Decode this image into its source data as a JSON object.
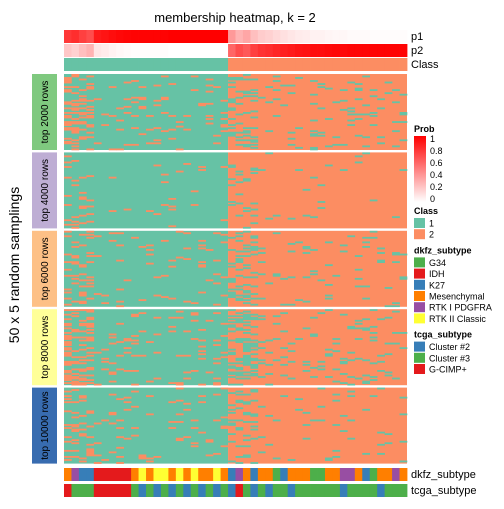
{
  "chart_data": {
    "type": "heatmap",
    "title": "membership heatmap, k = 2",
    "ylabel": "50 x 5 random samplings",
    "n_columns": 46,
    "split_at": 22,
    "top_tracks": [
      {
        "label": "p1",
        "values": [
          0.78,
          0.82,
          0.75,
          0.7,
          0.9,
          0.92,
          0.95,
          0.97,
          0.98,
          0.99,
          0.99,
          0.99,
          0.99,
          0.99,
          1,
          1,
          1,
          1,
          1,
          1,
          1,
          1,
          0.4,
          0.3,
          0.35,
          0.25,
          0.2,
          0.18,
          0.15,
          0.12,
          0.1,
          0.08,
          0.07,
          0.05,
          0.05,
          0.04,
          0.03,
          0.03,
          0.02,
          0.02,
          0.02,
          0.01,
          0.01,
          0.01,
          0.01,
          0.01
        ]
      },
      {
        "label": "p2",
        "values": [
          0.22,
          0.18,
          0.25,
          0.3,
          0.1,
          0.08,
          0.05,
          0.03,
          0.02,
          0.01,
          0.01,
          0.01,
          0.01,
          0.01,
          0,
          0,
          0,
          0,
          0,
          0,
          0,
          0,
          0.6,
          0.7,
          0.65,
          0.75,
          0.8,
          0.82,
          0.85,
          0.88,
          0.9,
          0.92,
          0.93,
          0.95,
          0.95,
          0.96,
          0.97,
          0.97,
          0.98,
          0.98,
          0.98,
          0.99,
          0.99,
          0.99,
          0.99,
          0.99
        ]
      },
      {
        "label": "Class",
        "values": [
          1,
          1,
          1,
          1,
          1,
          1,
          1,
          1,
          1,
          1,
          1,
          1,
          1,
          1,
          1,
          1,
          1,
          1,
          1,
          1,
          1,
          1,
          2,
          2,
          2,
          2,
          2,
          2,
          2,
          2,
          2,
          2,
          2,
          2,
          2,
          2,
          2,
          2,
          2,
          2,
          2,
          2,
          2,
          2,
          2,
          2
        ]
      }
    ],
    "row_groups": [
      {
        "label": "top 2000 rows",
        "color": "#7fc97f",
        "minority_rate": 0.12
      },
      {
        "label": "top 4000 rows",
        "color": "#beaed4",
        "minority_rate": 0.04
      },
      {
        "label": "top 6000 rows",
        "color": "#fdc086",
        "minority_rate": 0.08
      },
      {
        "label": "top 8000 rows",
        "color": "#ffff99",
        "minority_rate": 0.14
      },
      {
        "label": "top 10000 rows",
        "color": "#386cb0",
        "minority_rate": 0.08
      }
    ],
    "bottom_tracks": [
      {
        "label": "dkfz_subtype",
        "values": [
          "Mesenchymal",
          "RTK I PDGFRA",
          "K27",
          "K27",
          "IDH",
          "IDH",
          "IDH",
          "IDH",
          "IDH",
          "Mesenchymal",
          "RTK II Classic",
          "Mesenchymal",
          "RTK II Classic",
          "RTK II Classic",
          "Mesenchymal",
          "RTK II Classic",
          "Mesenchymal",
          "RTK II Classic",
          "Mesenchymal",
          "Mesenchymal",
          "RTK II Classic",
          "Mesenchymal",
          "K27",
          "RTK I PDGFRA",
          "Mesenchymal",
          "K27",
          "Mesenchymal",
          "Mesenchymal",
          "G34",
          "K27",
          "Mesenchymal",
          "Mesenchymal",
          "Mesenchymal",
          "G34",
          "G34",
          "Mesenchymal",
          "Mesenchymal",
          "RTK I PDGFRA",
          "RTK I PDGFRA",
          "Mesenchymal",
          "K27",
          "G34",
          "Mesenchymal",
          "Mesenchymal",
          "RTK I PDGFRA",
          "Mesenchymal"
        ]
      },
      {
        "label": "tcga_subtype",
        "values": [
          "G-CIMP+",
          "Cluster #3",
          "Cluster #3",
          "Cluster #3",
          "G-CIMP+",
          "G-CIMP+",
          "G-CIMP+",
          "G-CIMP+",
          "G-CIMP+",
          "Cluster #3",
          "Cluster #2",
          "Cluster #3",
          "Cluster #2",
          "Cluster #3",
          "Cluster #2",
          "Cluster #3",
          "Cluster #2",
          "Cluster #3",
          "Cluster #2",
          "Cluster #3",
          "Cluster #2",
          "Cluster #3",
          "Cluster #2",
          "G-CIMP+",
          "Cluster #3",
          "Cluster #2",
          "Cluster #3",
          "Cluster #2",
          "Cluster #3",
          "Cluster #3",
          "Cluster #2",
          "Cluster #3",
          "Cluster #3",
          "Cluster #3",
          "Cluster #3",
          "Cluster #3",
          "Cluster #3",
          "Cluster #2",
          "Cluster #3",
          "Cluster #3",
          "Cluster #3",
          "Cluster #3",
          "Cluster #2",
          "Cluster #3",
          "Cluster #3",
          "Cluster #3"
        ]
      }
    ],
    "colors": {
      "prob_low": "#ffffff",
      "prob_high": "#ff0000",
      "class": {
        "1": "#66c2a5",
        "2": "#fc8d62"
      },
      "dkfz": {
        "G34": "#4daf4a",
        "IDH": "#e41a1c",
        "K27": "#377eb8",
        "Mesenchymal": "#ff7f00",
        "RTK I PDGFRA": "#984ea3",
        "RTK II Classic": "#ffff33"
      },
      "tcga": {
        "Cluster #2": "#377eb8",
        "Cluster #3": "#4daf4a",
        "G-CIMP+": "#e41a1c"
      }
    },
    "legends": [
      {
        "title": "Prob",
        "type": "gradient",
        "ticks": [
          "1",
          "0.8",
          "0.6",
          "0.4",
          "0.2",
          "0"
        ]
      },
      {
        "title": "Class",
        "type": "discrete",
        "items": [
          "1",
          "2"
        ],
        "palette": "class"
      },
      {
        "title": "dkfz_subtype",
        "type": "discrete",
        "items": [
          "G34",
          "IDH",
          "K27",
          "Mesenchymal",
          "RTK I PDGFRA",
          "RTK II Classic"
        ],
        "palette": "dkfz"
      },
      {
        "title": "tcga_subtype",
        "type": "discrete",
        "items": [
          "Cluster #2",
          "Cluster #3",
          "G-CIMP+"
        ],
        "palette": "tcga"
      }
    ]
  }
}
